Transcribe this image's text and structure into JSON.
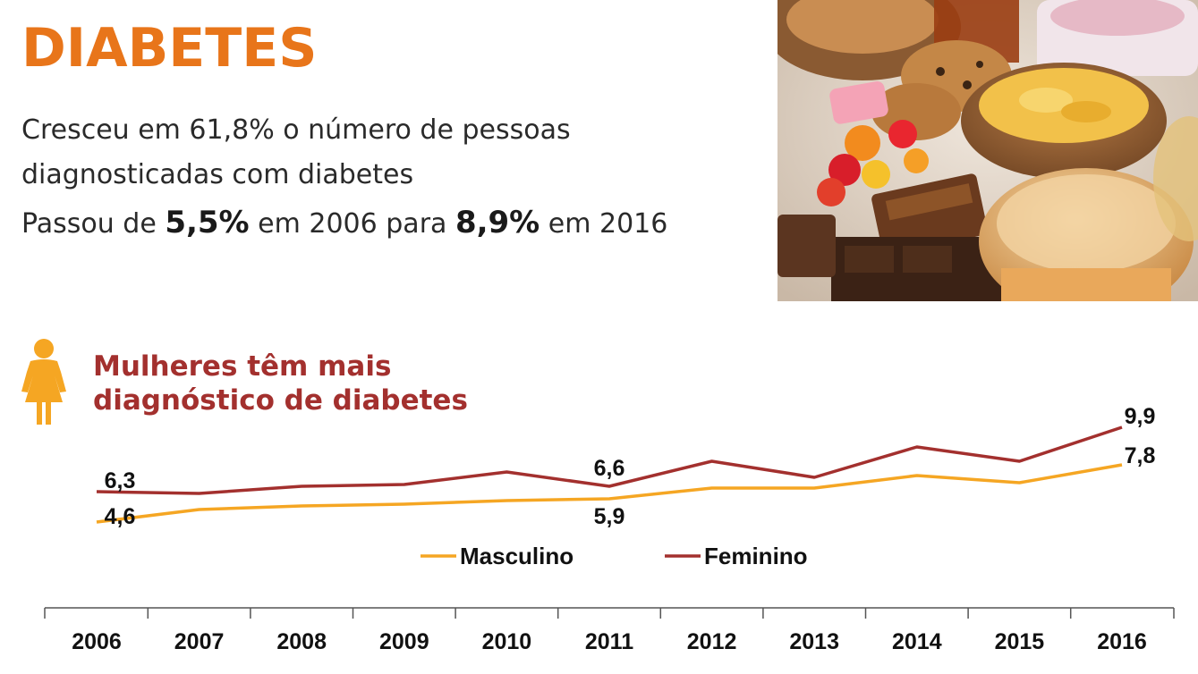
{
  "header": {
    "title": "DIABETES",
    "line1": "Cresceu em 61,8% o número de pessoas",
    "line2": "diagnosticadas com diabetes",
    "line3_pre": "Passou de ",
    "line3_val1": "5,5%",
    "line3_mid": " em 2006 para ",
    "line3_val2": "8,9%",
    "line3_post": " em 2016"
  },
  "section": {
    "title_line1": "Mulheres têm mais",
    "title_line2": "diagnóstico de diabetes",
    "icon": "woman-icon"
  },
  "image": {
    "subject": "food-photo"
  },
  "colors": {
    "title": "#E8751A",
    "subtitle": "#A3302E",
    "masculino": "#F5A623",
    "feminino": "#A3302E",
    "icon": "#F5A623"
  },
  "chart_data": {
    "type": "line",
    "x": [
      2006,
      2007,
      2008,
      2009,
      2010,
      2011,
      2012,
      2013,
      2014,
      2015,
      2016
    ],
    "series": [
      {
        "name": "Masculino",
        "values": [
          4.6,
          5.3,
          5.5,
          5.6,
          5.8,
          5.9,
          6.5,
          6.5,
          7.2,
          6.8,
          7.8
        ]
      },
      {
        "name": "Feminino",
        "values": [
          6.3,
          6.2,
          6.6,
          6.7,
          7.4,
          6.6,
          8.0,
          7.1,
          8.8,
          8.0,
          9.9
        ]
      }
    ],
    "data_labels": [
      {
        "series": "Feminino",
        "x": 2006,
        "text": "6,3"
      },
      {
        "series": "Masculino",
        "x": 2006,
        "text": "4,6"
      },
      {
        "series": "Feminino",
        "x": 2011,
        "text": "6,6"
      },
      {
        "series": "Masculino",
        "x": 2011,
        "text": "5,9"
      },
      {
        "series": "Feminino",
        "x": 2016,
        "text": "9,9"
      },
      {
        "series": "Masculino",
        "x": 2016,
        "text": "7,8"
      }
    ],
    "legend": [
      "Masculino",
      "Feminino"
    ],
    "legend_position": "below-lines",
    "grid": false
  }
}
